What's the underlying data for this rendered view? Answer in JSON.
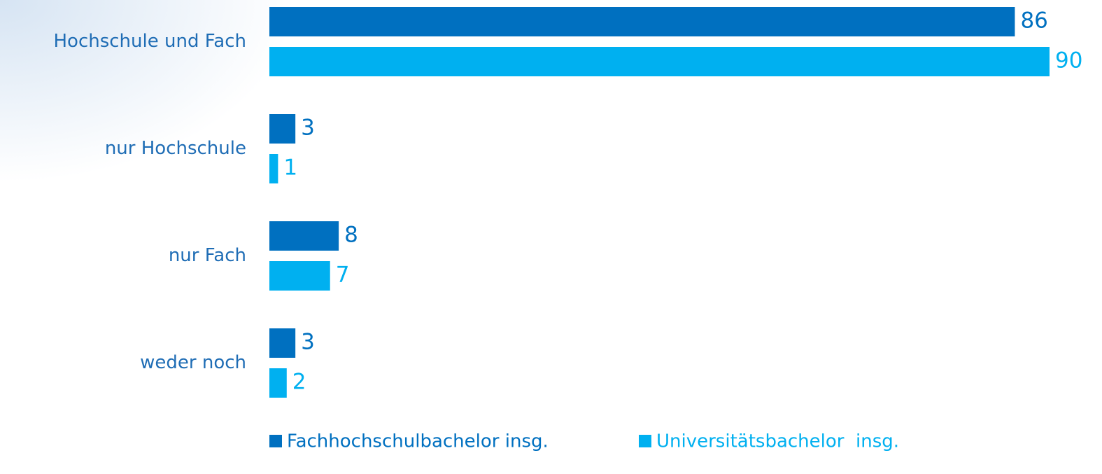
{
  "chart_data": {
    "type": "bar",
    "orientation": "horizontal",
    "categories": [
      "Hochschule und Fach",
      "nur Hochschule",
      "nur Fach",
      "weder noch"
    ],
    "series": [
      {
        "name": "Fachhochschulbachelor insg.",
        "color": "#0070c0",
        "values": [
          86,
          3,
          8,
          3
        ]
      },
      {
        "name": "Universitätsbachelor  insg.",
        "color": "#00b0f0",
        "values": [
          90,
          1,
          7,
          2
        ]
      }
    ],
    "legend": "bottom"
  }
}
